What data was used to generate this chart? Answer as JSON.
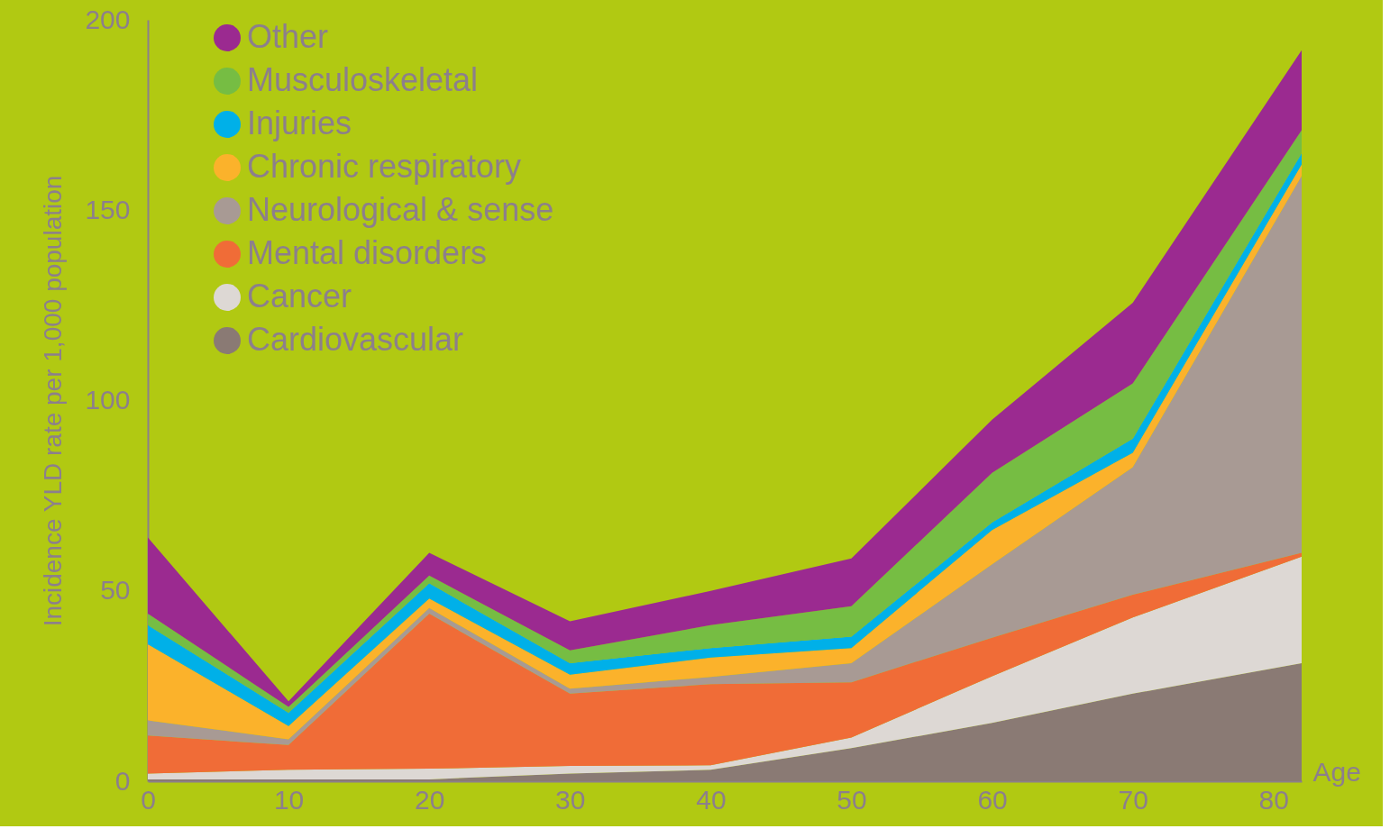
{
  "chart_data": {
    "type": "area",
    "stacked": true,
    "xlabel": "Age",
    "ylabel": "Incidence YLD rate per 1,000 population",
    "x": [
      0,
      10,
      20,
      30,
      40,
      50,
      60,
      70,
      82
    ],
    "xlim": [
      0,
      82
    ],
    "xticks": [
      0,
      10,
      20,
      30,
      40,
      50,
      60,
      70,
      80
    ],
    "ylim": [
      0,
      200
    ],
    "yticks": [
      0,
      50,
      100,
      150,
      200
    ],
    "grid": false,
    "legend": "top left",
    "series": [
      {
        "name": "Cardiovascular",
        "color": "#8a7a74",
        "values": [
          0.5,
          0.5,
          0.5,
          2,
          3,
          8.7,
          15.3,
          23,
          31
        ]
      },
      {
        "name": "Cancer",
        "color": "#ddd8d4",
        "values": [
          1.5,
          2.5,
          2.8,
          2,
          1.2,
          2.8,
          12.3,
          20,
          28
        ]
      },
      {
        "name": "Mental disorders",
        "color": "#f06c37",
        "values": [
          10,
          6.5,
          40.7,
          19,
          21.3,
          14.5,
          10.1,
          6,
          1
        ]
      },
      {
        "name": "Neurological & sense",
        "color": "#a89a94",
        "values": [
          4,
          1.5,
          1.5,
          1.3,
          1.9,
          5,
          19.3,
          33.5,
          99
        ]
      },
      {
        "name": "Chronic respiratory",
        "color": "#fbb22b",
        "values": [
          20,
          3.5,
          2.5,
          3.7,
          5.1,
          4,
          9,
          3.8,
          3
        ]
      },
      {
        "name": "Injuries",
        "color": "#00b0e8",
        "values": [
          5,
          3.5,
          4,
          3,
          2.5,
          3,
          2,
          3.7,
          3
        ]
      },
      {
        "name": "Musculoskeletal",
        "color": "#76bd43",
        "values": [
          3,
          1.5,
          2,
          3.4,
          6,
          8,
          13,
          14.5,
          6
        ]
      },
      {
        "name": "Other",
        "color": "#9b2a90",
        "values": [
          20,
          1.5,
          6,
          7.6,
          9,
          12.5,
          14,
          21.2,
          21
        ]
      }
    ]
  }
}
